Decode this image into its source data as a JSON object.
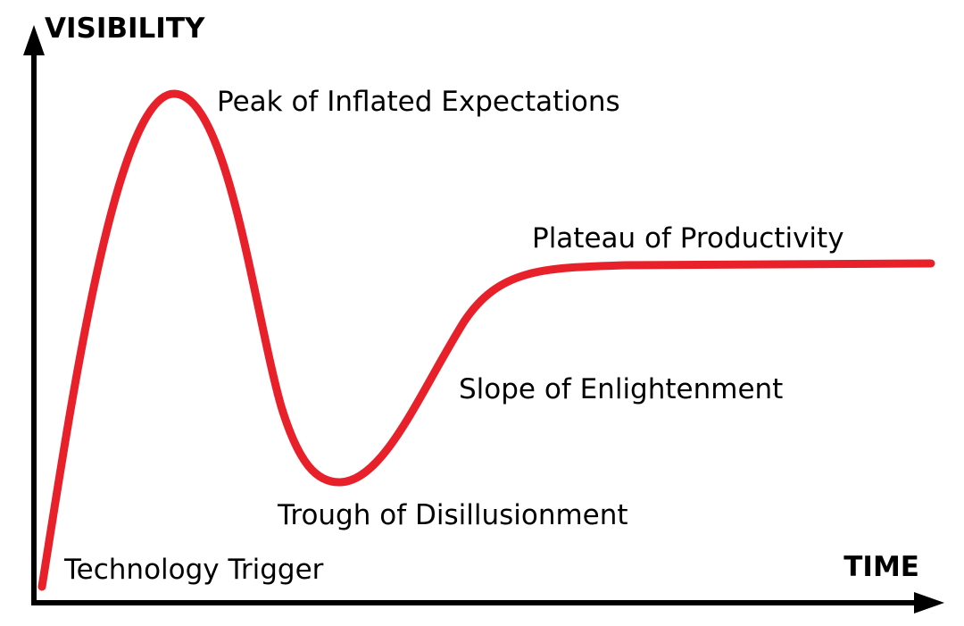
{
  "axes": {
    "y_label": "VISIBILITY",
    "x_label": "TIME"
  },
  "phases": [
    "Technology Trigger",
    "Peak of Inflated Expectations",
    "Trough of Disillusionment",
    "Slope of Enlightenment",
    "Plateau of Productivity"
  ],
  "colors": {
    "curve": "#e8202a",
    "axes": "#000000",
    "text": "#000000",
    "background": "#ffffff"
  }
}
